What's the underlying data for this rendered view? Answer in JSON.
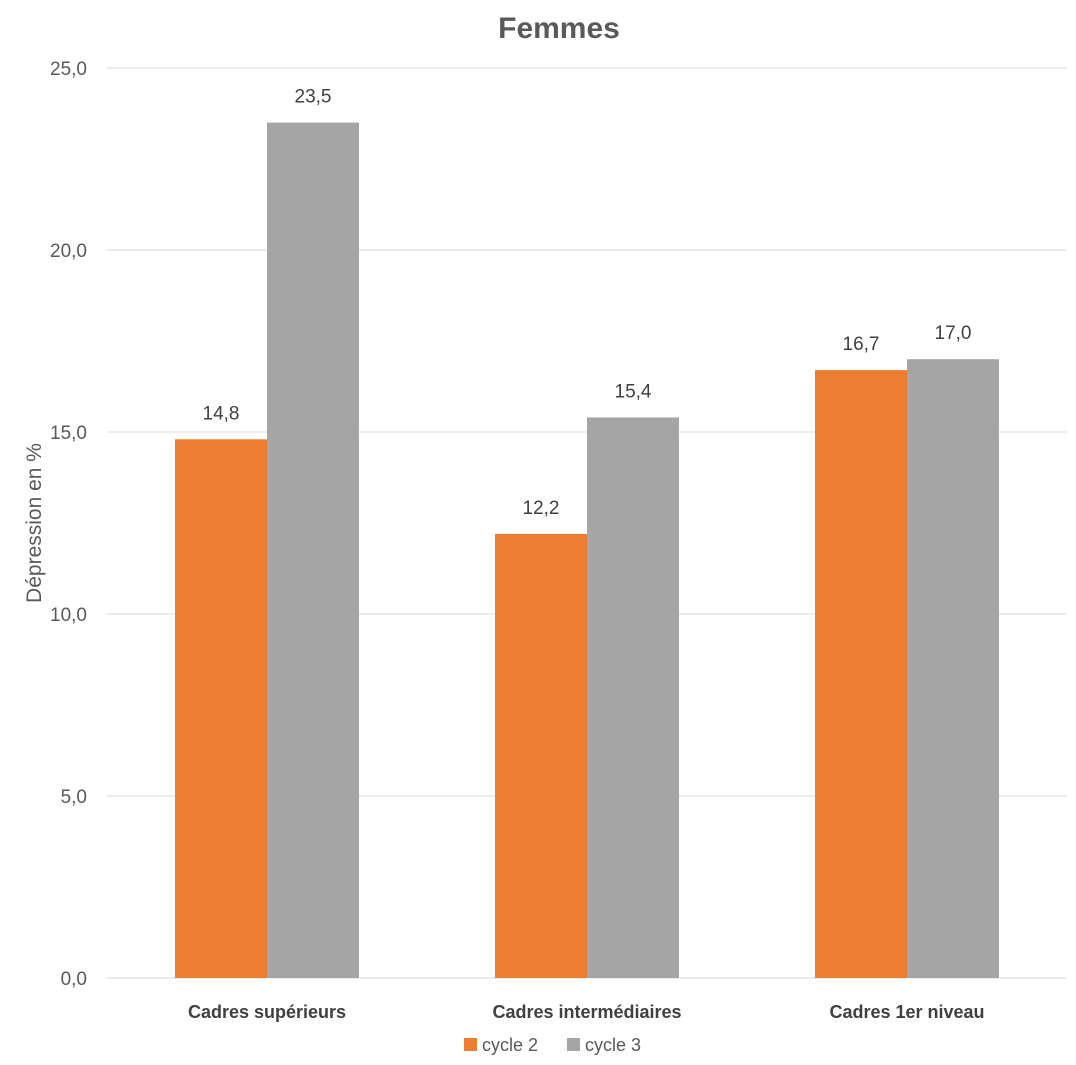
{
  "chart_data": {
    "type": "bar",
    "title": "Femmes",
    "ylabel": "Dépression en %",
    "xlabel": "",
    "ylim": [
      0,
      25
    ],
    "yticks": [
      "0,0",
      "5,0",
      "10,0",
      "15,0",
      "20,0",
      "25,0"
    ],
    "categories": [
      "Cadres supérieurs",
      "Cadres intermédiaires",
      "Cadres 1er niveau"
    ],
    "series": [
      {
        "name": "cycle 2",
        "color": "#ED7D31",
        "values": [
          14.8,
          12.2,
          16.7
        ],
        "labels": [
          "14,8",
          "12,2",
          "16,7"
        ]
      },
      {
        "name": "cycle 3",
        "color": "#A5A5A5",
        "values": [
          23.5,
          15.4,
          17.0
        ],
        "labels": [
          "23,5",
          "15,4",
          "17,0"
        ]
      }
    ],
    "grid": true,
    "legend": "bottom"
  }
}
